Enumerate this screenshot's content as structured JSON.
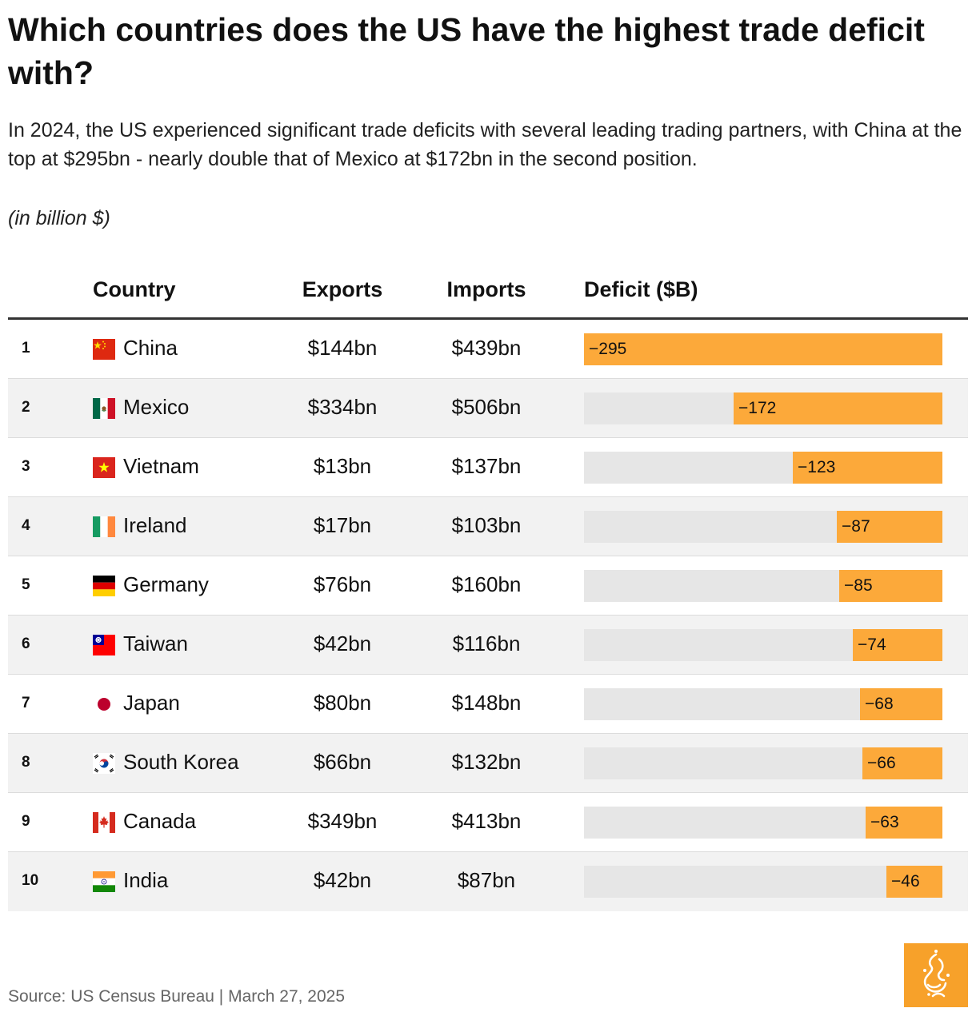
{
  "header": {
    "title": "Which countries does the US have the highest trade deficit with?",
    "subtitle": "In 2024, the US experienced significant trade deficits with several leading trading partners, with China at the top at $295bn - nearly double that of Mexico at $172bn in the second position.",
    "unit_note": "(in billion $)"
  },
  "table": {
    "columns": [
      "Country",
      "Exports",
      "Imports",
      "Deficit ($B)"
    ]
  },
  "chart_data": {
    "type": "table",
    "title": "Which countries does the US have the highest trade deficit with?",
    "unit": "billion $",
    "bar_max": 295,
    "rows": [
      {
        "rank": "1",
        "country": "China",
        "flag": "china-flag-icon",
        "exports": "$144bn",
        "imports": "$439bn",
        "deficit": -295,
        "deficit_label": "−295"
      },
      {
        "rank": "2",
        "country": "Mexico",
        "flag": "mexico-flag-icon",
        "exports": "$334bn",
        "imports": "$506bn",
        "deficit": -172,
        "deficit_label": "−172"
      },
      {
        "rank": "3",
        "country": "Vietnam",
        "flag": "vietnam-flag-icon",
        "exports": "$13bn",
        "imports": "$137bn",
        "deficit": -123,
        "deficit_label": "−123"
      },
      {
        "rank": "4",
        "country": "Ireland",
        "flag": "ireland-flag-icon",
        "exports": "$17bn",
        "imports": "$103bn",
        "deficit": -87,
        "deficit_label": "−87"
      },
      {
        "rank": "5",
        "country": "Germany",
        "flag": "germany-flag-icon",
        "exports": "$76bn",
        "imports": "$160bn",
        "deficit": -85,
        "deficit_label": "−85"
      },
      {
        "rank": "6",
        "country": "Taiwan",
        "flag": "taiwan-flag-icon",
        "exports": "$42bn",
        "imports": "$116bn",
        "deficit": -74,
        "deficit_label": "−74"
      },
      {
        "rank": "7",
        "country": "Japan",
        "flag": "japan-flag-icon",
        "exports": "$80bn",
        "imports": "$148bn",
        "deficit": -68,
        "deficit_label": "−68"
      },
      {
        "rank": "8",
        "country": "South Korea",
        "flag": "south-korea-flag-icon",
        "exports": "$66bn",
        "imports": "$132bn",
        "deficit": -66,
        "deficit_label": "−66"
      },
      {
        "rank": "9",
        "country": "Canada",
        "flag": "canada-flag-icon",
        "exports": "$349bn",
        "imports": "$413bn",
        "deficit": -63,
        "deficit_label": "−63"
      },
      {
        "rank": "10",
        "country": "India",
        "flag": "india-flag-icon",
        "exports": "$42bn",
        "imports": "$87bn",
        "deficit": -46,
        "deficit_label": "−46"
      }
    ]
  },
  "colors": {
    "bar": "#fca93a",
    "track": "#e6e6e6",
    "logo": "#f7a12a"
  },
  "footer": {
    "source": "Source: US Census Bureau | March 27, 2025",
    "logo_icon": "al-jazeera-logo-icon"
  }
}
